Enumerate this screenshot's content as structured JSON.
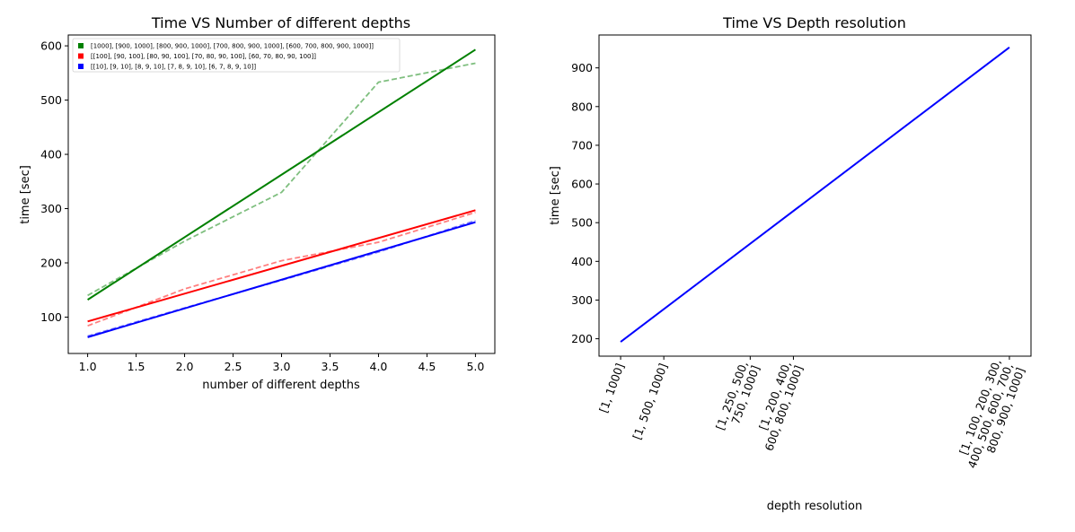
{
  "chart_data": [
    {
      "type": "line",
      "title": "Time VS Number of different depths",
      "xlabel": "number of different depths",
      "ylabel": "time [sec]",
      "xlim": [
        0.8,
        5.2
      ],
      "ylim": [
        33,
        620
      ],
      "xticks": [
        "1.0",
        "1.5",
        "2.0",
        "2.5",
        "3.0",
        "3.5",
        "4.0",
        "4.5",
        "5.0"
      ],
      "yticks": [
        "100",
        "200",
        "300",
        "400",
        "500",
        "600"
      ],
      "legend_position": "top-left",
      "series": [
        {
          "name": "[1000], [900, 1000], [800, 900, 1000], [700, 800, 900, 1000], [600, 700, 800, 900, 1000]]",
          "color": "#008000",
          "measured": {
            "x": [
              1,
              2,
              3,
              4,
              5
            ],
            "y": [
              140,
              240,
              330,
              533,
              568
            ]
          },
          "fit": {
            "x": [
              1,
              5
            ],
            "y": [
              132,
              593
            ]
          }
        },
        {
          "name": "[[100], [90, 100], [80, 90, 100], [70, 80, 90, 100], [60, 70, 80, 90, 100]]",
          "color": "#ff0000",
          "measured": {
            "x": [
              1,
              2,
              3,
              4,
              5
            ],
            "y": [
              84,
              152,
              204,
              238,
              293
            ]
          },
          "fit": {
            "x": [
              1,
              5
            ],
            "y": [
              92,
              297
            ]
          }
        },
        {
          "name": "[[10], [9, 10], [8, 9, 10], [7, 8, 9, 10], [6, 7, 8, 9, 10]]",
          "color": "#0000ff",
          "measured": {
            "x": [
              1,
              2,
              3,
              4,
              5
            ],
            "y": [
              65,
              117,
              168,
              220,
              278
            ]
          },
          "fit": {
            "x": [
              1,
              5
            ],
            "y": [
              63,
              275
            ]
          }
        }
      ]
    },
    {
      "type": "line",
      "title": "Time VS Depth resolution",
      "xlabel": "depth resolution",
      "ylabel": "time [sec]",
      "ylim": [
        155,
        985
      ],
      "yticks": [
        "200",
        "300",
        "400",
        "500",
        "600",
        "700",
        "800",
        "900"
      ],
      "x_positions": [
        2,
        3,
        5,
        6,
        11
      ],
      "xlim": [
        1.5,
        11.5
      ],
      "categories": [
        [
          "[1, 1000]"
        ],
        [
          "[1, 500, 1000]"
        ],
        [
          "[1, 250, 500,",
          "750, 1000]"
        ],
        [
          "[1, 200, 400,",
          "600, 800, 1000]"
        ],
        [
          "[1, 100, 200, 300,",
          "400, 500, 600, 700,",
          "800, 900, 1000]"
        ]
      ],
      "series": [
        {
          "color": "#0000ff",
          "x": [
            2,
            11
          ],
          "y": [
            192,
            953
          ]
        }
      ]
    }
  ]
}
